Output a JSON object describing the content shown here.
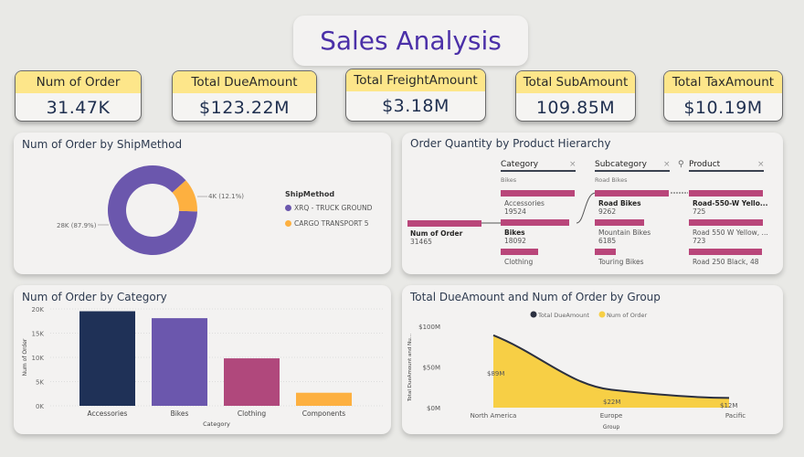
{
  "title": "Sales Analysis",
  "kpis": [
    {
      "label": "Num of Order",
      "value": "31.47K"
    },
    {
      "label": "Total DueAmount",
      "value": "$123.22M"
    },
    {
      "label": "Total FreightAmount",
      "value": "$3.18M"
    },
    {
      "label": "Total SubAmount",
      "value": "109.85M"
    },
    {
      "label": "Total TaxAmount",
      "value": "$10.19M"
    }
  ],
  "colors": {
    "purple": "#6b57ad",
    "orange": "#fdb040",
    "navy": "#1f3157",
    "magenta": "#b0487c",
    "yellow": "#f7cf45",
    "line": "#2b3040"
  },
  "chart_data": [
    {
      "type": "pie",
      "title": "Num of Order by ShipMethod",
      "legend_title": "ShipMethod",
      "legend_position": "right",
      "slices": [
        {
          "name": "XRQ - TRUCK GROUND",
          "percent": 87.9,
          "label": "28K (87.9%)"
        },
        {
          "name": "CARGO TRANSPORT 5",
          "percent": 12.1,
          "label": "4K (12.1%)"
        }
      ]
    },
    {
      "type": "bar",
      "title": "Num of Order by Category",
      "xlabel": "Category",
      "ylabel": "Num of Order",
      "ylim": [
        0,
        20000
      ],
      "yticks": [
        "0K",
        "5K",
        "10K",
        "15K",
        "20K"
      ],
      "categories": [
        "Accessories",
        "Bikes",
        "Clothing",
        "Components"
      ],
      "values": [
        19524,
        18092,
        9800,
        2700
      ],
      "grid": true
    },
    {
      "type": "area",
      "title": "Total DueAmount and Num of Order by Group",
      "xlabel": "Group",
      "ylabel": "Total DueAmount and Nu...",
      "ylim": [
        0,
        100
      ],
      "yticks": [
        "$0M",
        "$50M",
        "$100M"
      ],
      "categories": [
        "North America",
        "Europe",
        "Pacific"
      ],
      "legend_position": "top",
      "series": [
        {
          "name": "Total DueAmount",
          "values": [
            89,
            22,
            12
          ],
          "labels": [
            "$89M",
            "$22M",
            "$12M"
          ]
        },
        {
          "name": "Num of Order"
        }
      ]
    }
  ],
  "tree": {
    "title": "Order Quantity by Product Hierarchy",
    "root": {
      "label": "Num of Order",
      "value": "31465"
    },
    "levels": [
      {
        "header": "Category",
        "filter": "Bikes",
        "items": [
          {
            "label": "Accessories",
            "value": "19524",
            "frac": 1
          },
          {
            "label": "Bikes",
            "value": "18092",
            "frac": 0.93
          },
          {
            "label": "Clothing",
            "value": "",
            "frac": 0.5
          }
        ]
      },
      {
        "header": "Subcategory",
        "filter": "Road Bikes",
        "items": [
          {
            "label": "Road Bikes",
            "value": "9262",
            "frac": 1
          },
          {
            "label": "Mountain Bikes",
            "value": "6185",
            "frac": 0.67
          },
          {
            "label": "Touring Bikes",
            "value": "",
            "frac": 0.29
          }
        ]
      },
      {
        "header": "Product",
        "filter": "",
        "items": [
          {
            "label": "Road-550-W Yello...",
            "value": "725",
            "frac": 1
          },
          {
            "label": "Road 550 W Yellow, ...",
            "value": "723",
            "frac": 1
          },
          {
            "label": "Road 250 Black, 48",
            "value": "",
            "frac": 0.99
          }
        ]
      }
    ]
  }
}
